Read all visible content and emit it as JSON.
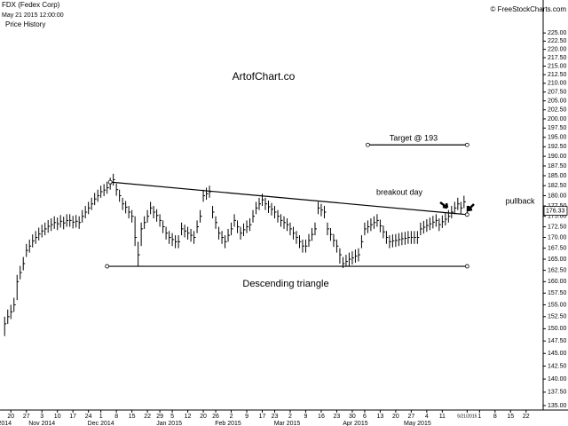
{
  "chart_data": {
    "type": "ohlc",
    "symbol": "FDX (Fedex Corp)",
    "timestamp": "May 21 2015 12:00:00",
    "subtitle": "Price History",
    "source": "© FreeStockCharts.com",
    "title": "ArtofChart.co",
    "annotations": [
      "Target @ 193",
      "breakout day",
      "pullback",
      "Descending triangle"
    ],
    "log_scale": true,
    "color": "#000000",
    "ylim": [
      133.2,
      235.4
    ],
    "xlim": [
      -3.5,
      171.5
    ],
    "yticks": [
      {
        "value": 135,
        "label": "135.00"
      },
      {
        "value": 137.5,
        "label": "137.50"
      },
      {
        "value": 140,
        "label": "140.00"
      },
      {
        "value": 142.5,
        "label": "142.50"
      },
      {
        "value": 145,
        "label": "145.00"
      },
      {
        "value": 147.5,
        "label": "147.50"
      },
      {
        "value": 150,
        "label": "150.00"
      },
      {
        "value": 152.5,
        "label": "152.50"
      },
      {
        "value": 155,
        "label": "155.00"
      },
      {
        "value": 157.5,
        "label": "157.50"
      },
      {
        "value": 160,
        "label": "160.00"
      },
      {
        "value": 162.5,
        "label": "162.50"
      },
      {
        "value": 165,
        "label": "165.00"
      },
      {
        "value": 167.5,
        "label": "167.50"
      },
      {
        "value": 170,
        "label": "170.00"
      },
      {
        "value": 172.5,
        "label": "172.50"
      },
      {
        "value": 175,
        "label": "175.00"
      },
      {
        "value": 177.5,
        "label": "177.50"
      },
      {
        "value": 180,
        "label": "180.00"
      },
      {
        "value": 182.5,
        "label": "182.50"
      },
      {
        "value": 185,
        "label": "185.00"
      },
      {
        "value": 187.5,
        "label": "187.50"
      },
      {
        "value": 190,
        "label": "190.00"
      },
      {
        "value": 192.5,
        "label": "192.50"
      },
      {
        "value": 195,
        "label": "195.00"
      },
      {
        "value": 197.5,
        "label": "197.50"
      },
      {
        "value": 200,
        "label": "200.00"
      },
      {
        "value": 202.5,
        "label": "202.50"
      },
      {
        "value": 205,
        "label": "205.00"
      },
      {
        "value": 207.5,
        "label": "207.50"
      },
      {
        "value": 210,
        "label": "210.00"
      },
      {
        "value": 212.5,
        "label": "212.50"
      },
      {
        "value": 215,
        "label": "215.00"
      },
      {
        "value": 217.5,
        "label": "217.50"
      },
      {
        "value": 220,
        "label": "220.00"
      },
      {
        "value": 222.5,
        "label": "222.50"
      },
      {
        "value": 225,
        "label": "225.00"
      }
    ],
    "xticks": [
      {
        "value": 0,
        "label": "20"
      },
      {
        "value": 5,
        "label": "27"
      },
      {
        "value": 10,
        "label": "3"
      },
      {
        "value": 15,
        "label": "10"
      },
      {
        "value": 20,
        "label": "17"
      },
      {
        "value": 25,
        "label": "24"
      },
      {
        "value": 29,
        "label": "1"
      },
      {
        "value": 34,
        "label": "8"
      },
      {
        "value": 39,
        "label": "15"
      },
      {
        "value": 44,
        "label": "22"
      },
      {
        "value": 48,
        "label": "29"
      },
      {
        "value": 52,
        "label": "5"
      },
      {
        "value": 57,
        "label": "12"
      },
      {
        "value": 62,
        "label": "20"
      },
      {
        "value": 66,
        "label": "26"
      },
      {
        "value": 71,
        "label": "2"
      },
      {
        "value": 76,
        "label": "9"
      },
      {
        "value": 81,
        "label": "17"
      },
      {
        "value": 85,
        "label": "23"
      },
      {
        "value": 90,
        "label": "2"
      },
      {
        "value": 95,
        "label": "9"
      },
      {
        "value": 100,
        "label": "16"
      },
      {
        "value": 105,
        "label": "23"
      },
      {
        "value": 110,
        "label": "30"
      },
      {
        "value": 114,
        "label": "6"
      },
      {
        "value": 119,
        "label": "13"
      },
      {
        "value": 124,
        "label": "20"
      },
      {
        "value": 129,
        "label": "27"
      },
      {
        "value": 134,
        "label": "4"
      },
      {
        "value": 139,
        "label": "11"
      },
      {
        "value": 147,
        "label": "5/21/2015"
      },
      {
        "value": 151,
        "label": "1"
      },
      {
        "value": 156,
        "label": "8"
      },
      {
        "value": 161,
        "label": "15"
      },
      {
        "value": 166,
        "label": "22"
      }
    ],
    "month_ticks": [
      {
        "value": -2,
        "label": "2014"
      },
      {
        "value": 10,
        "label": "Nov 2014"
      },
      {
        "value": 29,
        "label": "Dec 2014"
      },
      {
        "value": 51,
        "label": "Jan 2015"
      },
      {
        "value": 70,
        "label": "Feb 2015"
      },
      {
        "value": 89,
        "label": "Mar 2015"
      },
      {
        "value": 111,
        "label": "Apr 2015"
      },
      {
        "value": 131,
        "label": "May 2015"
      }
    ],
    "x": [
      -2,
      -1,
      0,
      1,
      2,
      3,
      4,
      5,
      6,
      7,
      8,
      9,
      10,
      11,
      12,
      13,
      14,
      15,
      16,
      17,
      18,
      19,
      20,
      21,
      22,
      23,
      24,
      25,
      26,
      27,
      28,
      29,
      30,
      31,
      32,
      33,
      34,
      35,
      36,
      37,
      38,
      39,
      40,
      41,
      42,
      43,
      44,
      45,
      46,
      47,
      48,
      49,
      50,
      51,
      52,
      53,
      54,
      55,
      56,
      57,
      58,
      59,
      60,
      61,
      62,
      63,
      64,
      65,
      66,
      67,
      68,
      69,
      70,
      71,
      72,
      73,
      74,
      75,
      76,
      77,
      78,
      79,
      80,
      81,
      82,
      83,
      84,
      85,
      86,
      87,
      88,
      89,
      90,
      91,
      92,
      93,
      94,
      95,
      96,
      97,
      98,
      99,
      100,
      101,
      102,
      103,
      104,
      105,
      106,
      107,
      108,
      109,
      110,
      111,
      112,
      113,
      114,
      115,
      116,
      117,
      118,
      119,
      120,
      121,
      122,
      123,
      124,
      125,
      126,
      127,
      128,
      129,
      130,
      131,
      132,
      133,
      134,
      135,
      136,
      137,
      138,
      139,
      140,
      141,
      142,
      143,
      144,
      145,
      146,
      147
    ],
    "high": [
      152.5,
      154,
      155,
      156.5,
      161.5,
      163.5,
      165.5,
      168.5,
      169.5,
      170.7,
      171.5,
      172.3,
      173,
      173.5,
      174.1,
      174.5,
      175,
      174.7,
      175.3,
      174.9,
      175.5,
      175.5,
      175.1,
      175.3,
      175,
      176.5,
      177.5,
      178.5,
      179.5,
      180.7,
      181.5,
      182.5,
      182.9,
      183.5,
      184.5,
      185.5,
      183,
      181.5,
      179.5,
      178.7,
      177.5,
      176.5,
      175,
      169,
      173.5,
      175,
      176.5,
      178.5,
      177.5,
      176.7,
      175.5,
      174,
      172.5,
      171.5,
      171,
      170.5,
      170.5,
      173.5,
      173,
      172.5,
      172,
      171.5,
      174,
      176.5,
      181.5,
      182,
      182.5,
      177.5,
      175,
      172.5,
      171.5,
      170.5,
      172,
      173.5,
      175.5,
      174,
      172.5,
      173.3,
      174,
      174.5,
      176.5,
      178.5,
      179.5,
      180.5,
      179.5,
      178.8,
      178.2,
      177.5,
      176.5,
      175.5,
      175,
      174.5,
      173.5,
      172.5,
      171.5,
      170.5,
      169.5,
      169.5,
      170.8,
      172.2,
      173.5,
      178.5,
      178,
      177.5,
      173.5,
      172.2,
      170.8,
      169.5,
      167.5,
      165.5,
      166,
      166.5,
      166.8,
      167.2,
      167.5,
      170.5,
      173.5,
      174,
      174.5,
      175,
      175.5,
      174.2,
      172.8,
      171.5,
      170.5,
      170.7,
      170.8,
      171,
      171.2,
      171.3,
      171.5,
      171.5,
      171.5,
      171.5,
      173.5,
      173.9,
      174.3,
      174.7,
      175.1,
      175.5,
      174.5,
      175.2,
      175.8,
      176.5,
      177.5,
      178.5,
      179.5,
      178.5,
      180,
      177.5
    ],
    "low": [
      148.5,
      151,
      152,
      153.5,
      156,
      160.5,
      162.5,
      165.5,
      166.5,
      167.7,
      168.5,
      169.3,
      170,
      170.5,
      171.1,
      171.5,
      172,
      171.7,
      172.3,
      171.9,
      172.5,
      172.5,
      172.1,
      172.3,
      172,
      173.5,
      174.5,
      175.5,
      176.5,
      177.7,
      178.5,
      179.5,
      179.9,
      180.5,
      181.5,
      182.5,
      180,
      178.5,
      176.5,
      175.7,
      174.5,
      173.5,
      168,
      163.5,
      168,
      172,
      173.5,
      175.5,
      174.5,
      173.7,
      172.5,
      171,
      169.5,
      168.5,
      168,
      167.5,
      167.5,
      170.5,
      170,
      169.5,
      169,
      168.5,
      171,
      173.5,
      178.5,
      179,
      179.5,
      174.5,
      172,
      169.5,
      168.5,
      167.5,
      169,
      170.5,
      172.5,
      171,
      169.5,
      170.3,
      171,
      171.5,
      173.5,
      175.5,
      176.5,
      177.5,
      176.5,
      175.8,
      175.2,
      174.5,
      173.5,
      172.5,
      172,
      171.5,
      170.5,
      169.5,
      168.5,
      167.5,
      166.5,
      166.5,
      167.8,
      169.2,
      170.5,
      175.5,
      175,
      174.5,
      170.5,
      169.2,
      167.8,
      166.5,
      164,
      163,
      163.5,
      163.5,
      163.8,
      164.2,
      164.5,
      167.5,
      170.5,
      171,
      171.5,
      172,
      172.5,
      171.2,
      169.8,
      168.5,
      167.5,
      167.7,
      167.8,
      168,
      168.2,
      168.3,
      168.5,
      168.5,
      168.5,
      168.5,
      170.5,
      170.9,
      171.3,
      171.7,
      172.1,
      172.5,
      171.5,
      172.2,
      172.8,
      173.5,
      174.5,
      175.5,
      176.5,
      175.5,
      177,
      175.5
    ],
    "close": [
      151,
      152.5,
      153.5,
      155,
      160,
      162,
      164,
      167,
      168,
      169.2,
      170,
      170.8,
      171.5,
      172,
      172.6,
      173,
      173.5,
      173.2,
      173.8,
      173.4,
      174,
      174,
      173.6,
      173.8,
      173.5,
      175,
      176,
      177,
      178,
      179.2,
      180,
      181,
      181.4,
      182,
      183,
      184,
      181.5,
      180,
      178,
      177.2,
      176,
      175,
      170,
      166,
      172,
      173.5,
      175,
      177,
      176,
      175.2,
      174,
      172.5,
      171,
      170,
      169.5,
      169,
      169,
      172,
      171.5,
      171,
      170.5,
      170,
      172.5,
      175,
      180,
      180.5,
      181,
      176,
      173.5,
      171,
      170,
      169,
      170.5,
      172,
      174,
      172.5,
      171,
      171.8,
      172.5,
      173,
      175,
      177,
      178,
      179,
      178,
      177.3,
      176.7,
      176,
      175,
      174,
      173.5,
      173,
      172,
      171,
      170,
      169,
      168,
      168,
      169.3,
      170.7,
      172,
      177,
      176.5,
      176,
      172,
      170.7,
      169.3,
      168,
      166,
      164,
      164.5,
      165,
      165.3,
      165.7,
      166,
      169,
      172,
      172.5,
      173,
      173.5,
      174,
      172.7,
      171.3,
      170,
      169,
      169.2,
      169.3,
      169.5,
      169.7,
      169.8,
      170,
      170,
      170,
      170,
      172,
      172.4,
      172.8,
      173.2,
      173.6,
      174,
      173,
      173.7,
      174.3,
      175,
      176,
      177,
      178,
      177,
      178.5,
      176.33
    ],
    "lines": [
      {
        "x": [
          32,
          147
        ],
        "y": [
          183.4,
          175.4
        ]
      },
      {
        "x": [
          31,
          147
        ],
        "y": [
          163.4,
          163.4
        ]
      },
      {
        "x": [
          115,
          147
        ],
        "y": [
          193,
          193
        ]
      }
    ]
  }
}
